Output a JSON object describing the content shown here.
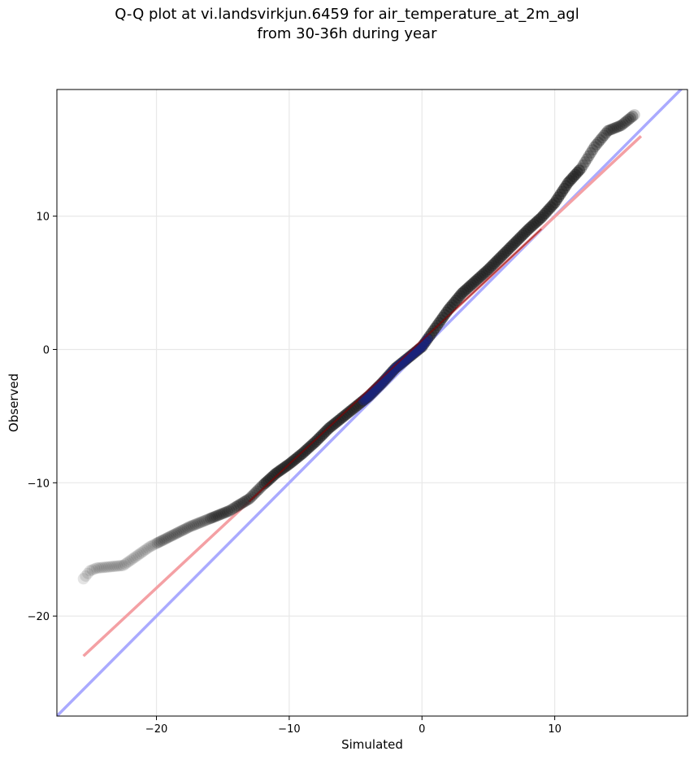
{
  "chart_data": {
    "type": "scatter",
    "title": "Q-Q plot at vi.landsvirkjun.6459 for air_temperature_at_2m_agl",
    "subtitle": "from 30-36h during year",
    "xlabel": "Simulated",
    "ylabel": "Observed",
    "xlim": [
      -27.5,
      20
    ],
    "ylim": [
      -27.5,
      19.5
    ],
    "x_ticks": [
      -20,
      -10,
      0,
      10
    ],
    "y_ticks": [
      -20,
      -10,
      0,
      10
    ],
    "grid": true,
    "colors": {
      "points": "#222222",
      "identity_line": "#aaaaff",
      "fit_line": "#f4a0a4",
      "center_highlight": "#1a237e",
      "fit_highlight": "#8b0000"
    },
    "quantiles": {
      "x": [
        -25.5,
        -25.0,
        -24.5,
        -22.5,
        -21.5,
        -20.5,
        -19.5,
        -18.5,
        -17.5,
        -16.5,
        -15.5,
        -14.5,
        -14.0,
        -13.0,
        -12.0,
        -11.0,
        -10.0,
        -9.0,
        -8.0,
        -7.0,
        -6.0,
        -5.0,
        -4.0,
        -3.0,
        -2.0,
        -1.0,
        0.0,
        1.0,
        2.0,
        3.0,
        4.0,
        5.0,
        6.0,
        7.0,
        8.0,
        9.0,
        10.0,
        11.0,
        12.0,
        13.0,
        14.0,
        15.0,
        16.0
      ],
      "y": [
        -17.2,
        -16.6,
        -16.4,
        -16.2,
        -15.5,
        -14.8,
        -14.3,
        -13.8,
        -13.3,
        -12.9,
        -12.5,
        -12.1,
        -11.8,
        -11.2,
        -10.2,
        -9.3,
        -8.6,
        -7.8,
        -6.9,
        -5.9,
        -5.1,
        -4.3,
        -3.5,
        -2.5,
        -1.4,
        -0.6,
        0.2,
        1.6,
        3.0,
        4.2,
        5.1,
        6.0,
        7.0,
        8.0,
        9.0,
        9.9,
        11.0,
        12.5,
        13.6,
        15.2,
        16.4,
        16.8,
        17.6
      ]
    },
    "identity_line": {
      "from": [
        -27.5,
        -27.5
      ],
      "to": [
        20,
        20
      ]
    },
    "fit_line": {
      "from": [
        -25.5,
        -23.0
      ],
      "to": [
        16.5,
        16.0
      ]
    }
  }
}
